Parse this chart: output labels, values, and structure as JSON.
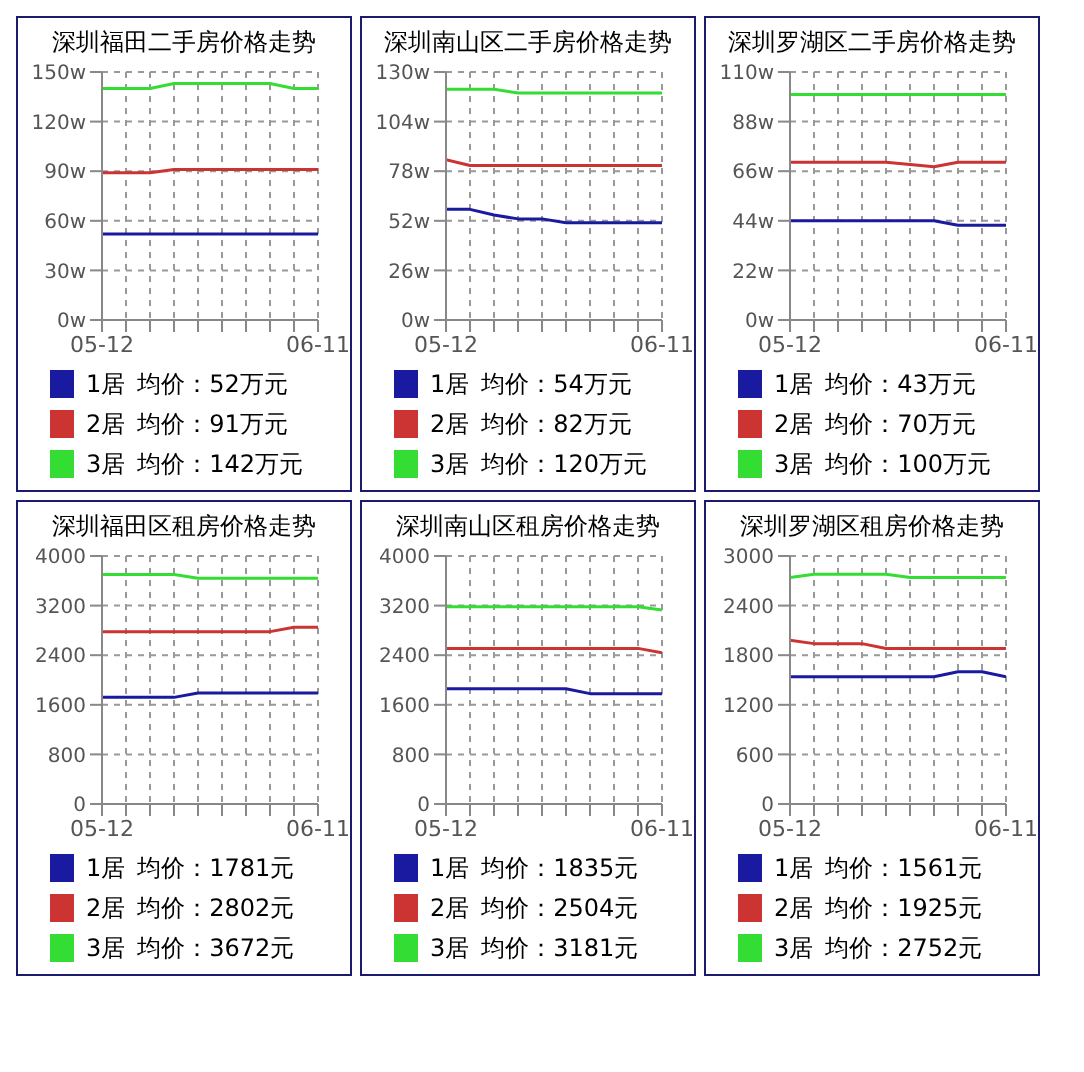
{
  "chart_data": [
    {
      "type": "line",
      "title": "深圳福田二手房价格走势",
      "categories": [
        "05-12",
        null,
        null,
        null,
        null,
        null,
        null,
        null,
        null,
        "06-11"
      ],
      "ylim": [
        0,
        150
      ],
      "yticks": [
        {
          "value": 0,
          "label": "0w"
        },
        {
          "value": 30,
          "label": "30w"
        },
        {
          "value": 60,
          "label": "60w"
        },
        {
          "value": 90,
          "label": "90w"
        },
        {
          "value": 120,
          "label": "120w"
        },
        {
          "value": 150,
          "label": "150w"
        }
      ],
      "grid": true,
      "legend": "bottom",
      "series": [
        {
          "name": "1居",
          "color": "#1a1aa0",
          "values": [
            52,
            52,
            52,
            52,
            52,
            52,
            52,
            52,
            52,
            52
          ]
        },
        {
          "name": "2居",
          "color": "#cc3333",
          "values": [
            89,
            89,
            89,
            91,
            91,
            91,
            91,
            91,
            91,
            91
          ]
        },
        {
          "name": "3居",
          "color": "#33dd33",
          "values": [
            140,
            140,
            140,
            143,
            143,
            143,
            143,
            143,
            140,
            140
          ]
        }
      ],
      "annotations": [
        "均价：52万元",
        "均价：91万元",
        "均价：142万元"
      ]
    },
    {
      "type": "line",
      "title": "深圳南山区二手房价格走势",
      "categories": [
        "05-12",
        null,
        null,
        null,
        null,
        null,
        null,
        null,
        null,
        "06-11"
      ],
      "ylim": [
        0,
        130
      ],
      "yticks": [
        {
          "value": 0,
          "label": "0w"
        },
        {
          "value": 26,
          "label": "26w"
        },
        {
          "value": 52,
          "label": "52w"
        },
        {
          "value": 78,
          "label": "78w"
        },
        {
          "value": 104,
          "label": "104w"
        },
        {
          "value": 130,
          "label": "130w"
        }
      ],
      "grid": true,
      "legend": "bottom",
      "series": [
        {
          "name": "1居",
          "color": "#1a1aa0",
          "values": [
            58,
            58,
            55,
            53,
            53,
            51,
            51,
            51,
            51,
            51
          ]
        },
        {
          "name": "2居",
          "color": "#cc3333",
          "values": [
            84,
            81,
            81,
            81,
            81,
            81,
            81,
            81,
            81,
            81
          ]
        },
        {
          "name": "3居",
          "color": "#33dd33",
          "values": [
            121,
            121,
            121,
            119,
            119,
            119,
            119,
            119,
            119,
            119
          ]
        }
      ],
      "annotations": [
        "均价：54万元",
        "均价：82万元",
        "均价：120万元"
      ]
    },
    {
      "type": "line",
      "title": "深圳罗湖区二手房价格走势",
      "categories": [
        "05-12",
        null,
        null,
        null,
        null,
        null,
        null,
        null,
        null,
        "06-11"
      ],
      "ylim": [
        0,
        110
      ],
      "yticks": [
        {
          "value": 0,
          "label": "0w"
        },
        {
          "value": 22,
          "label": "22w"
        },
        {
          "value": 44,
          "label": "44w"
        },
        {
          "value": 66,
          "label": "66w"
        },
        {
          "value": 88,
          "label": "88w"
        },
        {
          "value": 110,
          "label": "110w"
        }
      ],
      "grid": true,
      "legend": "bottom",
      "series": [
        {
          "name": "1居",
          "color": "#1a1aa0",
          "values": [
            44,
            44,
            44,
            44,
            44,
            44,
            44,
            42,
            42,
            42
          ]
        },
        {
          "name": "2居",
          "color": "#cc3333",
          "values": [
            70,
            70,
            70,
            70,
            70,
            69,
            68,
            70,
            70,
            70
          ]
        },
        {
          "name": "3居",
          "color": "#33dd33",
          "values": [
            100,
            100,
            100,
            100,
            100,
            100,
            100,
            100,
            100,
            100
          ]
        }
      ],
      "annotations": [
        "均价：43万元",
        "均价：70万元",
        "均价：100万元"
      ]
    },
    {
      "type": "line",
      "title": "深圳福田区租房价格走势",
      "categories": [
        "05-12",
        null,
        null,
        null,
        null,
        null,
        null,
        null,
        null,
        "06-11"
      ],
      "ylim": [
        0,
        4000
      ],
      "yticks": [
        0,
        800,
        1600,
        2400,
        3200,
        4000
      ],
      "grid": true,
      "legend": "bottom",
      "series": [
        {
          "name": "1居",
          "color": "#1a1aa0",
          "values": [
            1720,
            1720,
            1720,
            1720,
            1790,
            1790,
            1790,
            1790,
            1790,
            1790
          ]
        },
        {
          "name": "2居",
          "color": "#cc3333",
          "values": [
            2780,
            2780,
            2780,
            2780,
            2780,
            2780,
            2780,
            2780,
            2850,
            2850
          ]
        },
        {
          "name": "3居",
          "color": "#33dd33",
          "values": [
            3700,
            3700,
            3700,
            3700,
            3640,
            3640,
            3640,
            3640,
            3640,
            3640
          ]
        }
      ],
      "annotations": [
        "均价：1781元",
        "均价：2802元",
        "均价：3672元"
      ]
    },
    {
      "type": "line",
      "title": "深圳南山区租房价格走势",
      "categories": [
        "05-12",
        null,
        null,
        null,
        null,
        null,
        null,
        null,
        null,
        "06-11"
      ],
      "ylim": [
        0,
        4000
      ],
      "yticks": [
        0,
        800,
        1600,
        2400,
        3200,
        4000
      ],
      "grid": true,
      "legend": "bottom",
      "series": [
        {
          "name": "1居",
          "color": "#1a1aa0",
          "values": [
            1860,
            1860,
            1860,
            1860,
            1860,
            1860,
            1780,
            1780,
            1780,
            1780
          ]
        },
        {
          "name": "2居",
          "color": "#cc3333",
          "values": [
            2510,
            2510,
            2510,
            2510,
            2510,
            2510,
            2510,
            2510,
            2510,
            2440
          ]
        },
        {
          "name": "3居",
          "color": "#33dd33",
          "values": [
            3180,
            3180,
            3180,
            3180,
            3180,
            3180,
            3180,
            3180,
            3180,
            3130
          ]
        }
      ],
      "annotations": [
        "均价：1835元",
        "均价：2504元",
        "均价：3181元"
      ]
    },
    {
      "type": "line",
      "title": "深圳罗湖区租房价格走势",
      "categories": [
        "05-12",
        null,
        null,
        null,
        null,
        null,
        null,
        null,
        null,
        "06-11"
      ],
      "ylim": [
        0,
        3000
      ],
      "yticks": [
        0,
        600,
        1200,
        1800,
        2400,
        3000
      ],
      "grid": true,
      "legend": "bottom",
      "series": [
        {
          "name": "1居",
          "color": "#1a1aa0",
          "values": [
            1540,
            1540,
            1540,
            1540,
            1540,
            1540,
            1540,
            1600,
            1600,
            1540
          ]
        },
        {
          "name": "2居",
          "color": "#cc3333",
          "values": [
            1980,
            1940,
            1940,
            1940,
            1880,
            1880,
            1880,
            1880,
            1880,
            1880
          ]
        },
        {
          "name": "3居",
          "color": "#33dd33",
          "values": [
            2740,
            2780,
            2780,
            2780,
            2780,
            2740,
            2740,
            2740,
            2740,
            2740
          ]
        }
      ],
      "annotations": [
        "均价：1561元",
        "均价：1925元",
        "均价：2752元"
      ]
    }
  ]
}
